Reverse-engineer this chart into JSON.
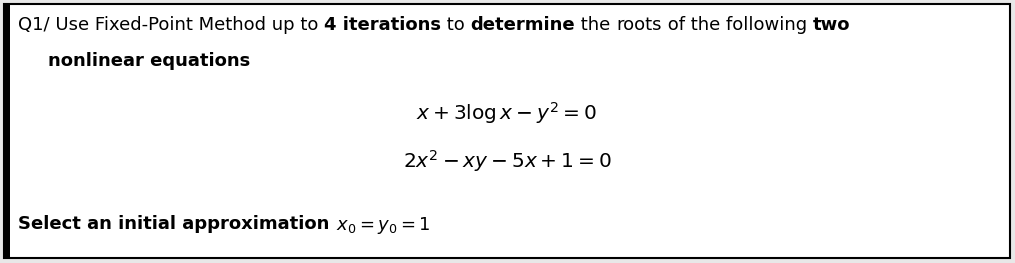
{
  "background_color": "#e8e8e8",
  "box_color": "#ffffff",
  "border_color": "#000000",
  "left_bar_color": "#000000",
  "font_size_title": 13.0,
  "font_size_eq": 14.5,
  "font_size_bottom": 13.0,
  "line1_segments": [
    [
      "Q1/ Use Fixed-Point Method up to ",
      false
    ],
    [
      "4 iterations",
      true
    ],
    [
      " to ",
      false
    ],
    [
      "determine",
      true
    ],
    [
      " the ",
      false
    ],
    [
      "roots",
      false
    ],
    [
      " of the following ",
      false
    ],
    [
      "two",
      true
    ]
  ],
  "line2_segments": [
    [
      "nonlinear equations",
      true
    ]
  ],
  "eq1": "$x + 3\\mathbf{log}\\,x - y^2 = 0$",
  "eq2": "$2x^2 - xy - 5x + 1 = 0$",
  "bottom_normal": "Select an initial approximation ",
  "bottom_math": "$x_0 = y_0 = 1$"
}
